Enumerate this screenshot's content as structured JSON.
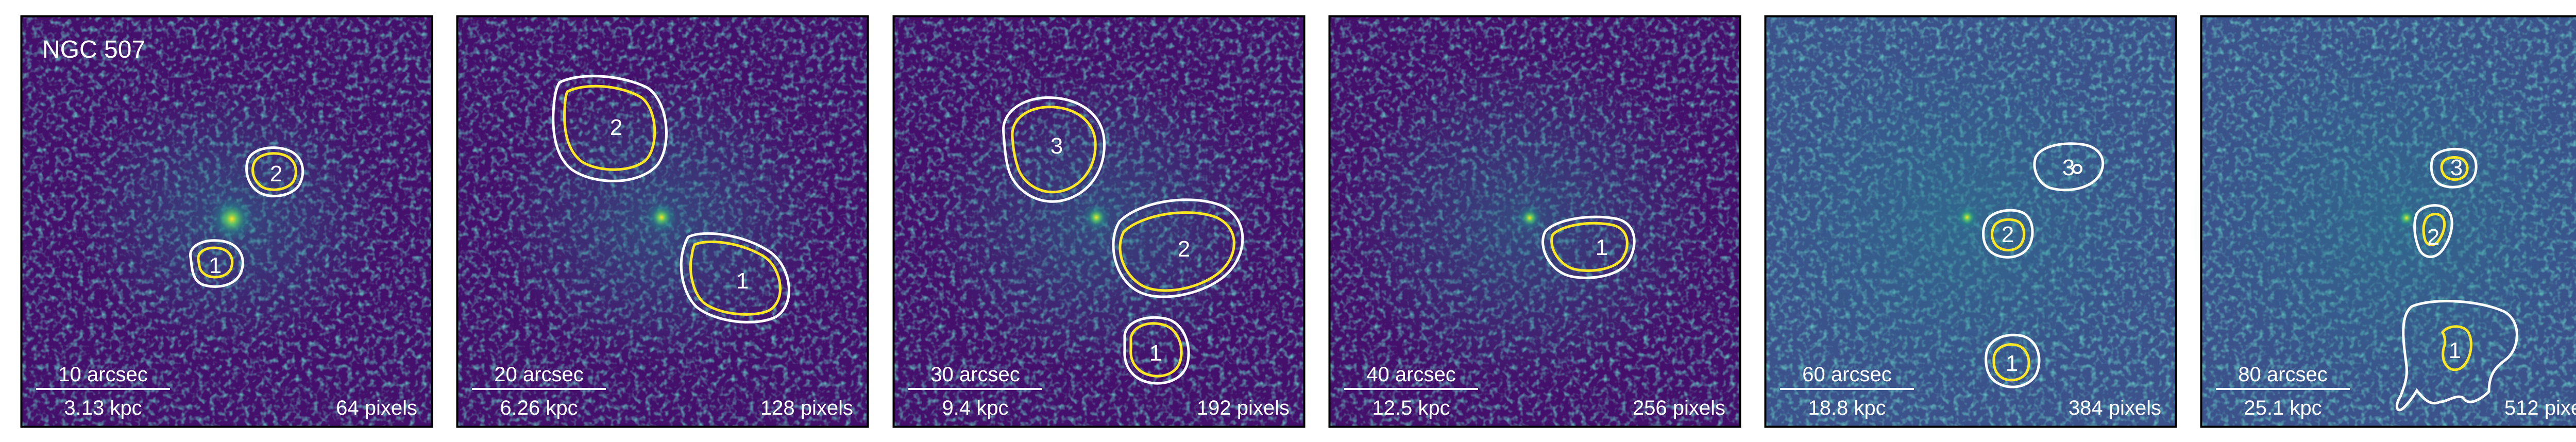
{
  "figure": {
    "title": "NGC 507",
    "colors": {
      "background_dark": "#45106b",
      "background_mid": "#3b528b",
      "noise_teal": "#21918c",
      "core_yellow": "#fde725",
      "contour_white": "#ffffff",
      "contour_yellow": "#fde725",
      "frame": "#000000"
    },
    "panels": [
      {
        "scale_arcsec": "10 arcsec",
        "scale_kpc": "3.13 kpc",
        "size_label": "64 pixels",
        "cavities": [
          {
            "label": "1"
          },
          {
            "label": "2"
          }
        ]
      },
      {
        "scale_arcsec": "20 arcsec",
        "scale_kpc": "6.26 kpc",
        "size_label": "128 pixels",
        "cavities": [
          {
            "label": "1"
          },
          {
            "label": "2"
          }
        ]
      },
      {
        "scale_arcsec": "30 arcsec",
        "scale_kpc": "9.4 kpc",
        "size_label": "192 pixels",
        "cavities": [
          {
            "label": "1"
          },
          {
            "label": "2"
          },
          {
            "label": "3"
          }
        ]
      },
      {
        "scale_arcsec": "40 arcsec",
        "scale_kpc": "12.5 kpc",
        "size_label": "256 pixels",
        "cavities": [
          {
            "label": "1"
          }
        ]
      },
      {
        "scale_arcsec": "60 arcsec",
        "scale_kpc": "18.8 kpc",
        "size_label": "384 pixels",
        "cavities": [
          {
            "label": "1"
          },
          {
            "label": "2"
          },
          {
            "label": "3"
          }
        ]
      },
      {
        "scale_arcsec": "80 arcsec",
        "scale_kpc": "25.1 kpc",
        "size_label": "512 pixels",
        "cavities": [
          {
            "label": "1"
          },
          {
            "label": "2"
          },
          {
            "label": "3"
          }
        ]
      }
    ]
  }
}
